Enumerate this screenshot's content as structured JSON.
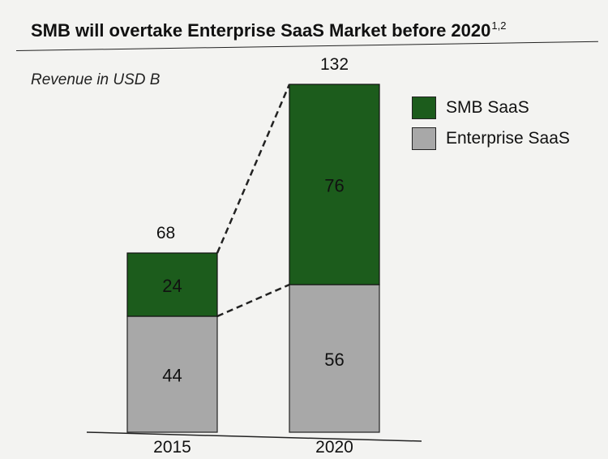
{
  "title": "SMB will overtake Enterprise SaaS Market before 2020",
  "title_superscript": "1,2",
  "subtitle": "Revenue in USD B",
  "chart_data": {
    "type": "bar",
    "stacked": true,
    "categories": [
      "2015",
      "2020"
    ],
    "series": [
      {
        "name": "Enterprise SaaS",
        "values": [
          44,
          56
        ],
        "color": "#a8a8a8"
      },
      {
        "name": "SMB SaaS",
        "values": [
          24,
          76
        ],
        "color": "#1c5c1c"
      }
    ],
    "totals": [
      68,
      132
    ],
    "ylim": [
      0,
      132
    ],
    "legend_position": "top-right",
    "grid": false,
    "connector_lines": "dashed"
  }
}
